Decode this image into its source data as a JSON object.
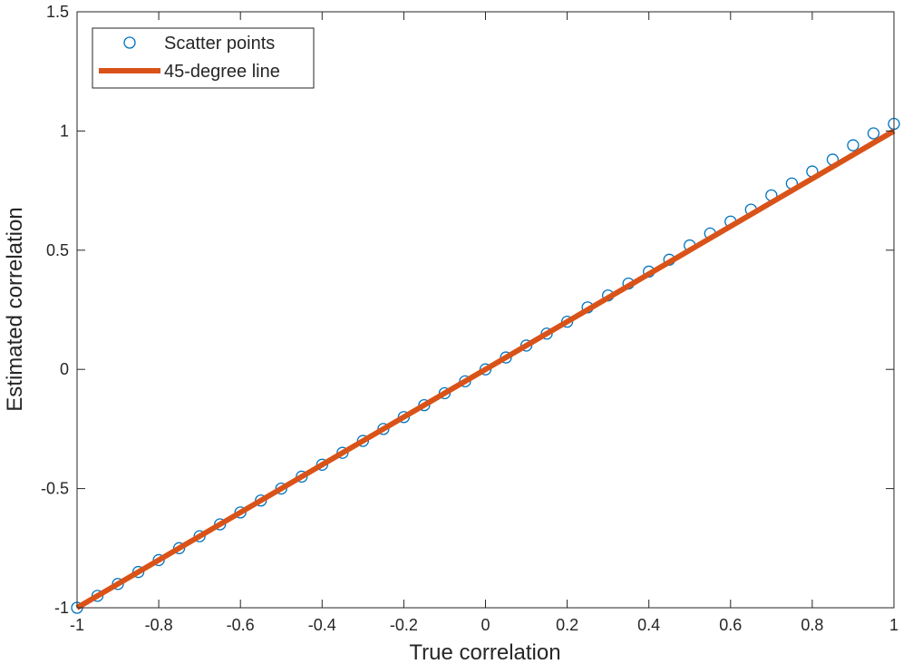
{
  "chart_data": {
    "type": "scatter",
    "title": "",
    "xlabel": "True correlation",
    "ylabel": "Estimated correlation",
    "xlim": [
      -1,
      1
    ],
    "ylim": [
      -1,
      1.5
    ],
    "xticks": [
      -1,
      -0.8,
      -0.6,
      -0.4,
      -0.2,
      0,
      0.2,
      0.4,
      0.6,
      0.8,
      1
    ],
    "xtick_labels": [
      "-1",
      "-0.8",
      "-0.6",
      "-0.4",
      "-0.2",
      "0",
      "0.2",
      "0.4",
      "0.6",
      "0.8",
      "1"
    ],
    "yticks": [
      -1,
      -0.5,
      0,
      0.5,
      1,
      1.5
    ],
    "ytick_labels": [
      "-1",
      "-0.5",
      "0",
      "0.5",
      "1",
      "1.5"
    ],
    "grid": false,
    "legend_position": "top-left",
    "series": [
      {
        "name": "Scatter points",
        "kind": "scatter",
        "marker": "open-circle",
        "color": "#0072BD",
        "x": [
          -1.0,
          -0.95,
          -0.9,
          -0.85,
          -0.8,
          -0.75,
          -0.7,
          -0.65,
          -0.6,
          -0.55,
          -0.5,
          -0.45,
          -0.4,
          -0.35,
          -0.3,
          -0.25,
          -0.2,
          -0.15,
          -0.1,
          -0.05,
          0.0,
          0.05,
          0.1,
          0.15,
          0.2,
          0.25,
          0.3,
          0.35,
          0.4,
          0.45,
          0.5,
          0.55,
          0.6,
          0.65,
          0.7,
          0.75,
          0.8,
          0.85,
          0.9,
          0.95,
          1.0
        ],
        "y": [
          -1.0,
          -0.95,
          -0.9,
          -0.85,
          -0.8,
          -0.75,
          -0.7,
          -0.65,
          -0.6,
          -0.55,
          -0.5,
          -0.45,
          -0.4,
          -0.35,
          -0.3,
          -0.25,
          -0.2,
          -0.15,
          -0.1,
          -0.05,
          0.0,
          0.05,
          0.1,
          0.15,
          0.2,
          0.26,
          0.31,
          0.36,
          0.41,
          0.46,
          0.52,
          0.57,
          0.62,
          0.67,
          0.73,
          0.78,
          0.83,
          0.88,
          0.94,
          0.99,
          1.03
        ]
      },
      {
        "name": "45-degree line",
        "kind": "line",
        "color": "#D95319",
        "x": [
          -1,
          1
        ],
        "y": [
          -1,
          1
        ]
      }
    ]
  }
}
